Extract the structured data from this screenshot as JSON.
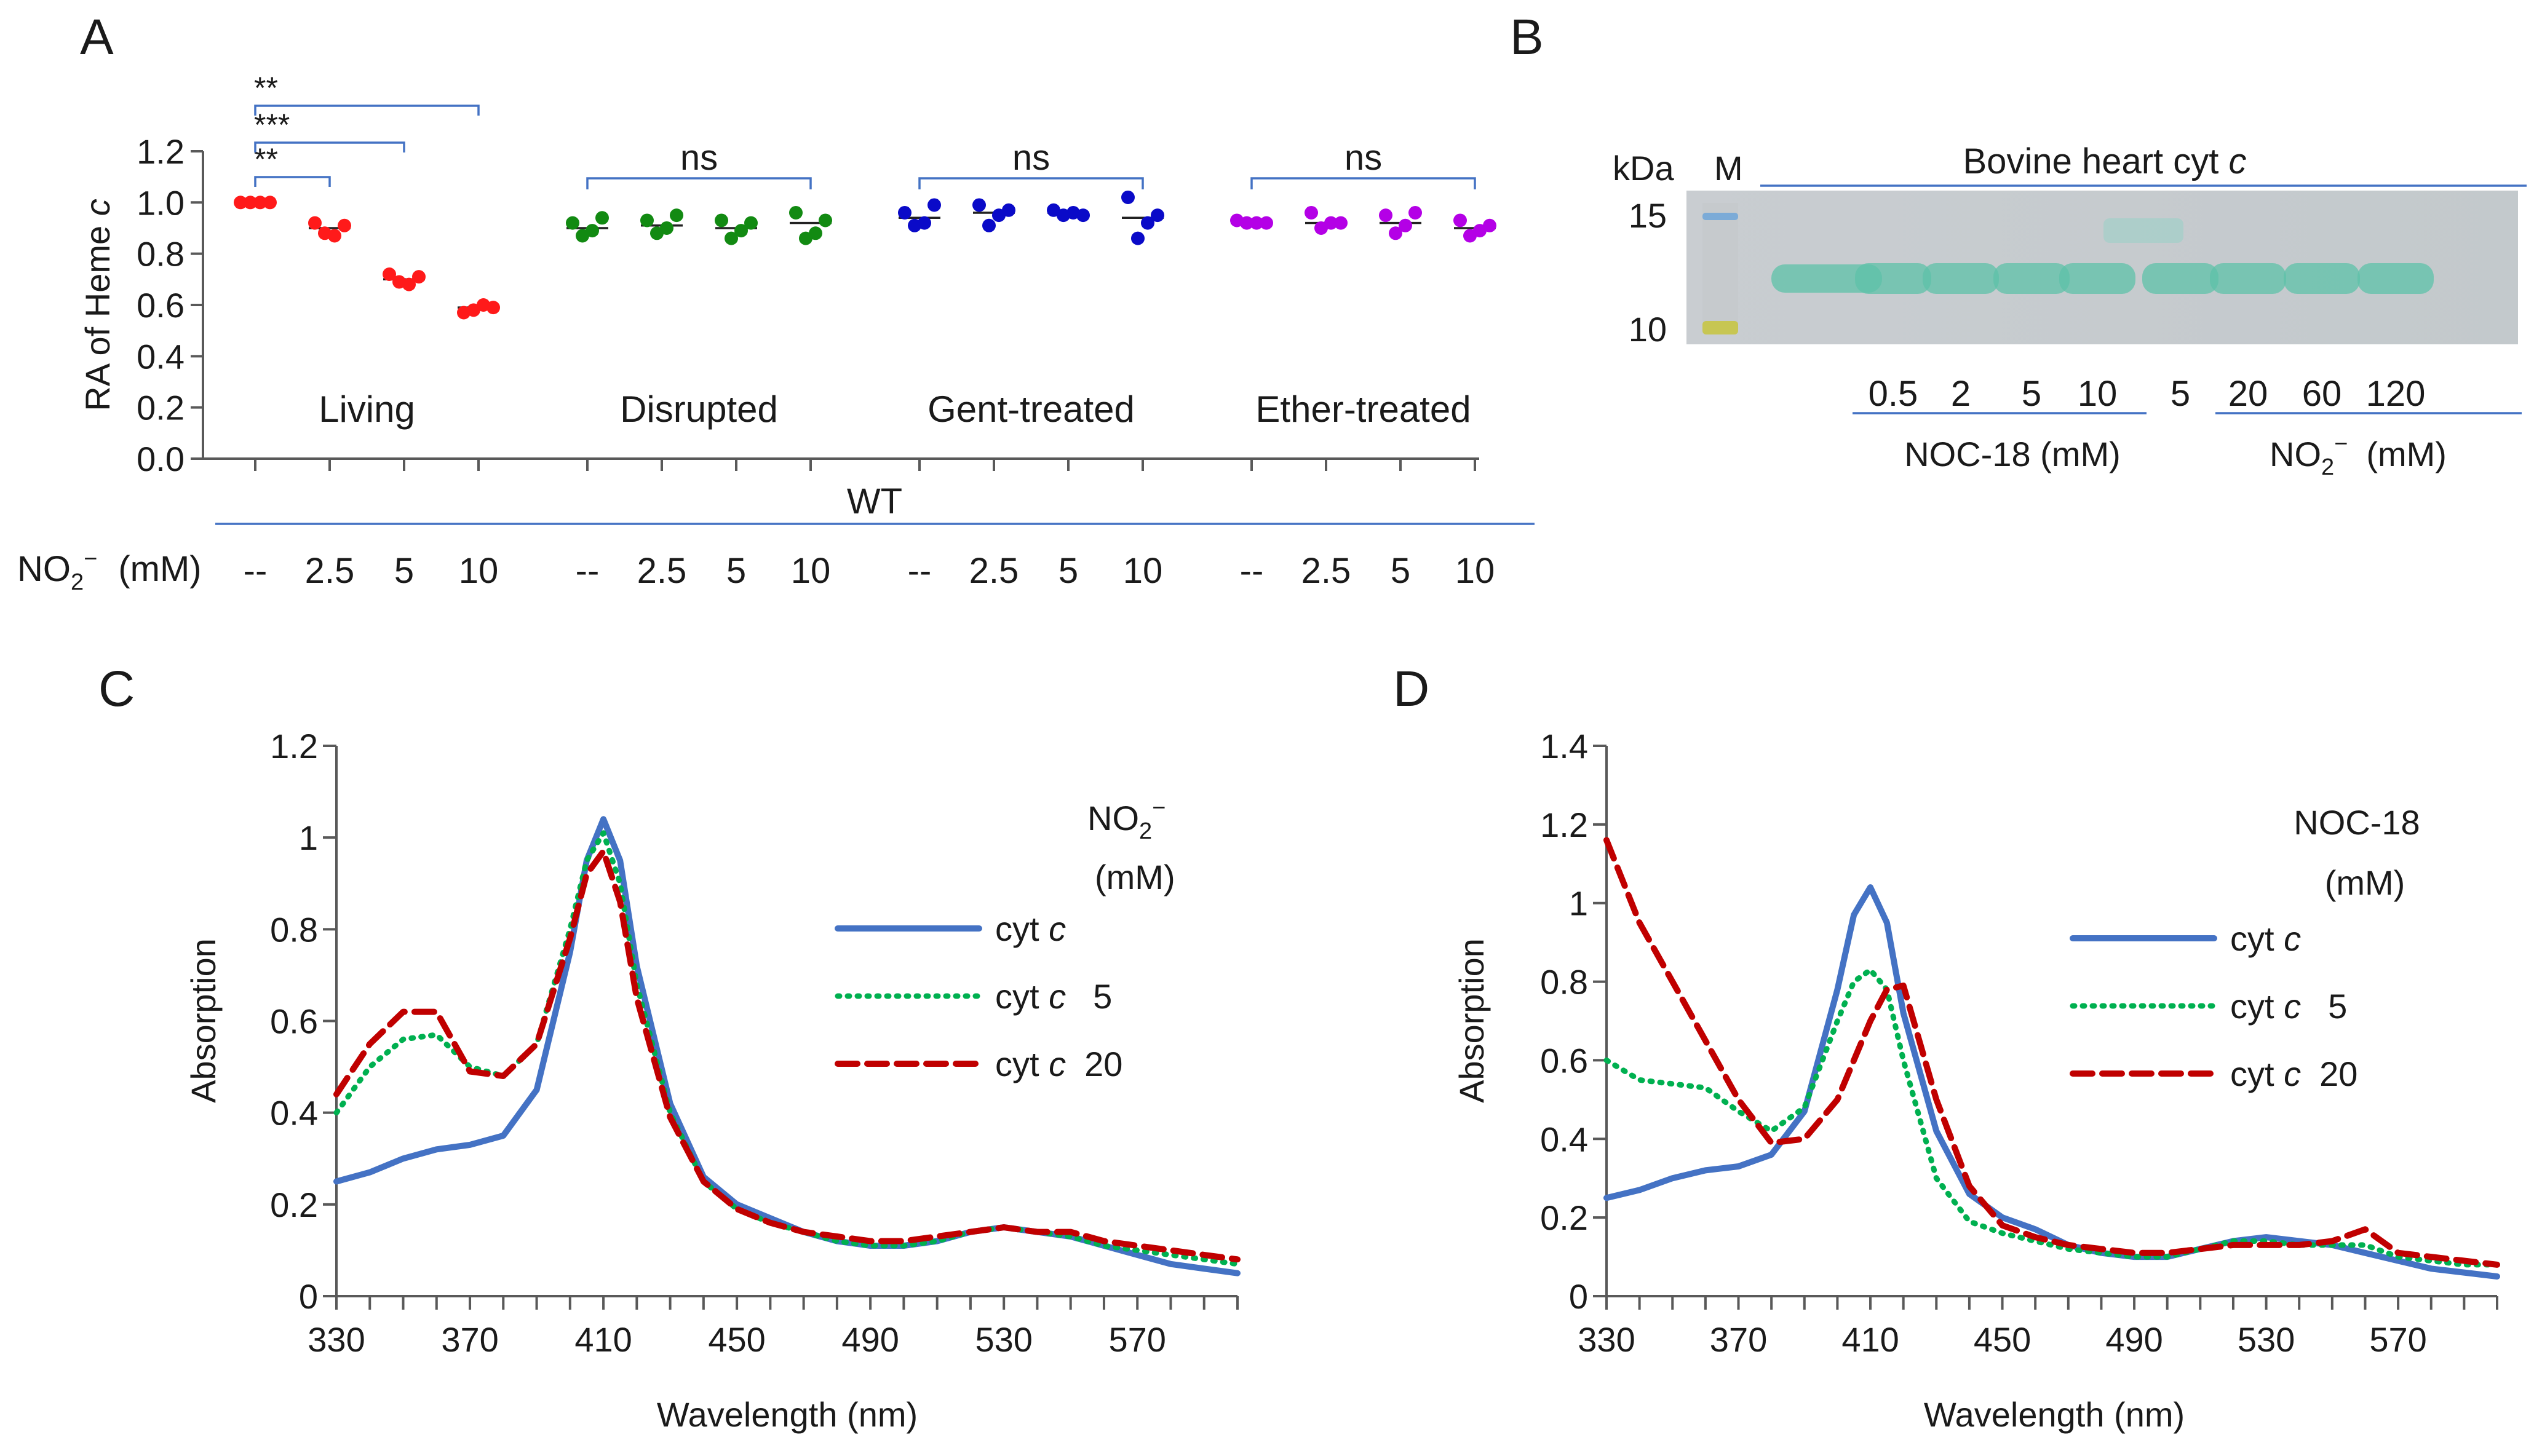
{
  "panels": {
    "A": "A",
    "B": "B",
    "C": "C",
    "D": "D"
  },
  "colors": {
    "red": "#ff1a1a",
    "green": "#128a12",
    "blue": "#0a0ac8",
    "purple": "#b400e6",
    "axis_blue": "#4472c4",
    "line_blue": "#4472c4",
    "line_green": "#00b050",
    "line_red": "#c00000"
  },
  "chart_data": [
    {
      "panel": "A",
      "type": "scatter",
      "ylabel": "RA of Heme c",
      "ylabel_main": "RA of Heme ",
      "ylabel_italic": "c",
      "ylim": [
        0,
        1.2
      ],
      "yticks": [
        "0.0",
        "0.2",
        "0.4",
        "0.6",
        "0.8",
        "1.0",
        "1.2"
      ],
      "ytick_values": [
        0,
        0.2,
        0.4,
        0.6,
        0.8,
        1.0,
        1.2
      ],
      "strain_label": "WT",
      "nitrite_label": "NO",
      "nitrite_sub": "2",
      "nitrite_sup": "−",
      "nitrite_unit": "(mM)",
      "concentration_labels": [
        "--",
        "2.5",
        "5",
        "10"
      ],
      "groups": [
        {
          "name": "Living",
          "color": "red",
          "significance": "",
          "points": [
            [
              1.0,
              1.0,
              1.0,
              1.0
            ],
            [
              0.92,
              0.88,
              0.87,
              0.91
            ],
            [
              0.72,
              0.69,
              0.68,
              0.71
            ],
            [
              0.57,
              0.58,
              0.6,
              0.59
            ]
          ],
          "means": [
            1.0,
            0.9,
            0.7,
            0.59
          ]
        },
        {
          "name": "Disrupted",
          "color": "green",
          "significance": "ns",
          "points": [
            [
              0.92,
              0.87,
              0.89,
              0.94
            ],
            [
              0.93,
              0.88,
              0.9,
              0.95
            ],
            [
              0.93,
              0.86,
              0.89,
              0.92
            ],
            [
              0.96,
              0.86,
              0.88,
              0.93
            ]
          ],
          "means": [
            0.9,
            0.91,
            0.9,
            0.92
          ]
        },
        {
          "name": "Gent-treated",
          "color": "blue",
          "significance": "ns",
          "points": [
            [
              0.96,
              0.91,
              0.92,
              0.99
            ],
            [
              0.99,
              0.91,
              0.95,
              0.97
            ],
            [
              0.97,
              0.95,
              0.96,
              0.95
            ],
            [
              1.02,
              0.86,
              0.92,
              0.95
            ]
          ],
          "means": [
            0.94,
            0.96,
            0.96,
            0.94
          ]
        },
        {
          "name": "Ether-treated",
          "color": "purple",
          "significance": "ns",
          "points": [
            [
              0.93,
              0.92,
              0.92,
              0.92
            ],
            [
              0.96,
              0.9,
              0.92,
              0.92
            ],
            [
              0.95,
              0.88,
              0.91,
              0.96
            ],
            [
              0.93,
              0.87,
              0.89,
              0.91
            ]
          ],
          "means": [
            0.92,
            0.92,
            0.92,
            0.9
          ]
        }
      ],
      "living_brackets": [
        {
          "label": "**",
          "to": 1
        },
        {
          "label": "***",
          "to": 2
        },
        {
          "label": "**",
          "to": 3
        }
      ]
    },
    {
      "panel": "B",
      "type": "gel",
      "title": "Bovine heart cyt c",
      "title_main": "Bovine heart cyt ",
      "title_italic": "c",
      "kda_label": "kDa",
      "marker_label": "M",
      "marker_sizes": [
        "15",
        "10"
      ],
      "noc_values": [
        "0.5",
        "2",
        "5",
        "10"
      ],
      "nitrite_values": [
        "5",
        "20",
        "60",
        "120"
      ],
      "noc_label": "NOC-18 (mM)",
      "nitrite_label": "NO",
      "nitrite_sub": "2",
      "nitrite_sup": "−",
      "nitrite_unit": "(mM)"
    },
    {
      "panel": "C",
      "type": "line",
      "xlabel": "Wavelength (nm)",
      "ylabel": "Absorption",
      "xlim": [
        330,
        600
      ],
      "ylim": [
        0,
        1.2
      ],
      "xticks": [
        "330",
        "370",
        "410",
        "450",
        "490",
        "530",
        "570"
      ],
      "xtick_values": [
        330,
        370,
        410,
        450,
        490,
        530,
        570
      ],
      "yticks": [
        "0",
        "0.2",
        "0.4",
        "0.6",
        "0.8",
        "1",
        "1.2"
      ],
      "ytick_values": [
        0,
        0.2,
        0.4,
        0.6,
        0.8,
        1,
        1.2
      ],
      "legend_title_main": "NO",
      "legend_title_sub": "2",
      "legend_title_sup": "−",
      "legend_title_unit": "(mM)",
      "series": [
        {
          "name": "cyt c",
          "label_main": "cyt ",
          "label_italic": "c",
          "label_suffix": "",
          "style": "solid",
          "color": "line_blue",
          "x": [
            330,
            340,
            350,
            360,
            370,
            380,
            390,
            400,
            405,
            410,
            415,
            420,
            430,
            440,
            450,
            460,
            470,
            480,
            490,
            500,
            510,
            520,
            530,
            540,
            550,
            560,
            570,
            580,
            590,
            600
          ],
          "y": [
            0.25,
            0.27,
            0.3,
            0.32,
            0.33,
            0.35,
            0.45,
            0.75,
            0.95,
            1.04,
            0.95,
            0.72,
            0.42,
            0.26,
            0.2,
            0.17,
            0.14,
            0.12,
            0.11,
            0.11,
            0.12,
            0.14,
            0.15,
            0.14,
            0.13,
            0.11,
            0.09,
            0.07,
            0.06,
            0.05
          ]
        },
        {
          "name": "cyt c 5",
          "label_main": "cyt ",
          "label_italic": "c",
          "label_suffix": "5",
          "style": "dotted",
          "color": "line_green",
          "x": [
            330,
            340,
            350,
            360,
            370,
            380,
            390,
            400,
            405,
            410,
            415,
            420,
            430,
            440,
            450,
            460,
            470,
            480,
            490,
            500,
            510,
            520,
            530,
            540,
            550,
            560,
            570,
            580,
            590,
            600
          ],
          "y": [
            0.4,
            0.5,
            0.56,
            0.57,
            0.5,
            0.48,
            0.55,
            0.8,
            0.95,
            1.01,
            0.9,
            0.68,
            0.4,
            0.25,
            0.19,
            0.16,
            0.14,
            0.12,
            0.11,
            0.11,
            0.12,
            0.14,
            0.15,
            0.14,
            0.13,
            0.11,
            0.1,
            0.09,
            0.08,
            0.07
          ]
        },
        {
          "name": "cyt c 20",
          "label_main": "cyt ",
          "label_italic": "c",
          "label_suffix": "20",
          "style": "dashed",
          "color": "line_red",
          "x": [
            330,
            340,
            350,
            360,
            370,
            380,
            390,
            400,
            405,
            410,
            415,
            420,
            430,
            440,
            450,
            460,
            470,
            480,
            490,
            500,
            510,
            520,
            530,
            540,
            550,
            560,
            570,
            580,
            590,
            600
          ],
          "y": [
            0.44,
            0.55,
            0.62,
            0.62,
            0.49,
            0.48,
            0.55,
            0.78,
            0.92,
            0.97,
            0.86,
            0.65,
            0.39,
            0.25,
            0.19,
            0.16,
            0.14,
            0.13,
            0.12,
            0.12,
            0.13,
            0.14,
            0.15,
            0.14,
            0.14,
            0.12,
            0.11,
            0.1,
            0.09,
            0.08
          ]
        }
      ]
    },
    {
      "panel": "D",
      "type": "line",
      "xlabel": "Wavelength (nm)",
      "ylabel": "Absorption",
      "xlim": [
        330,
        600
      ],
      "ylim": [
        0,
        1.4
      ],
      "xticks": [
        "330",
        "370",
        "410",
        "450",
        "490",
        "530",
        "570"
      ],
      "xtick_values": [
        330,
        370,
        410,
        450,
        490,
        530,
        570
      ],
      "yticks": [
        "0",
        "0.2",
        "0.4",
        "0.6",
        "0.8",
        "1",
        "1.2",
        "1.4"
      ],
      "ytick_values": [
        0,
        0.2,
        0.4,
        0.6,
        0.8,
        1,
        1.2,
        1.4
      ],
      "legend_title": "NOC-18",
      "legend_unit": "(mM)",
      "series": [
        {
          "name": "cyt c",
          "label_main": "cyt ",
          "label_italic": "c",
          "label_suffix": "",
          "style": "solid",
          "color": "line_blue",
          "x": [
            330,
            340,
            350,
            360,
            370,
            380,
            390,
            400,
            405,
            410,
            415,
            420,
            430,
            440,
            450,
            460,
            470,
            480,
            490,
            500,
            510,
            520,
            530,
            540,
            550,
            560,
            570,
            580,
            590,
            600
          ],
          "y": [
            0.25,
            0.27,
            0.3,
            0.32,
            0.33,
            0.36,
            0.47,
            0.78,
            0.97,
            1.04,
            0.95,
            0.72,
            0.42,
            0.26,
            0.2,
            0.17,
            0.13,
            0.11,
            0.1,
            0.1,
            0.12,
            0.14,
            0.15,
            0.14,
            0.13,
            0.11,
            0.09,
            0.07,
            0.06,
            0.05
          ]
        },
        {
          "name": "cyt c 5",
          "label_main": "cyt ",
          "label_italic": "c",
          "label_suffix": "5",
          "style": "dotted",
          "color": "line_green",
          "x": [
            330,
            340,
            350,
            360,
            370,
            380,
            390,
            400,
            405,
            410,
            415,
            420,
            430,
            440,
            450,
            460,
            470,
            480,
            490,
            500,
            510,
            520,
            530,
            540,
            550,
            560,
            570,
            580,
            590,
            600
          ],
          "y": [
            0.6,
            0.55,
            0.54,
            0.53,
            0.47,
            0.42,
            0.48,
            0.7,
            0.8,
            0.83,
            0.78,
            0.6,
            0.3,
            0.19,
            0.16,
            0.14,
            0.12,
            0.11,
            0.1,
            0.1,
            0.12,
            0.14,
            0.14,
            0.13,
            0.13,
            0.13,
            0.1,
            0.09,
            0.08,
            0.08
          ]
        },
        {
          "name": "cyt c 20",
          "label_main": "cyt ",
          "label_italic": "c",
          "label_suffix": "20",
          "style": "dashed",
          "color": "line_red",
          "x": [
            330,
            340,
            350,
            360,
            370,
            380,
            390,
            400,
            405,
            410,
            415,
            420,
            430,
            440,
            450,
            460,
            470,
            480,
            490,
            500,
            510,
            520,
            530,
            540,
            550,
            560,
            570,
            580,
            590,
            600
          ],
          "y": [
            1.16,
            0.95,
            0.8,
            0.65,
            0.5,
            0.39,
            0.4,
            0.5,
            0.6,
            0.7,
            0.78,
            0.79,
            0.5,
            0.28,
            0.18,
            0.15,
            0.13,
            0.12,
            0.11,
            0.11,
            0.12,
            0.13,
            0.13,
            0.13,
            0.14,
            0.17,
            0.11,
            0.1,
            0.09,
            0.08
          ]
        }
      ]
    }
  ]
}
